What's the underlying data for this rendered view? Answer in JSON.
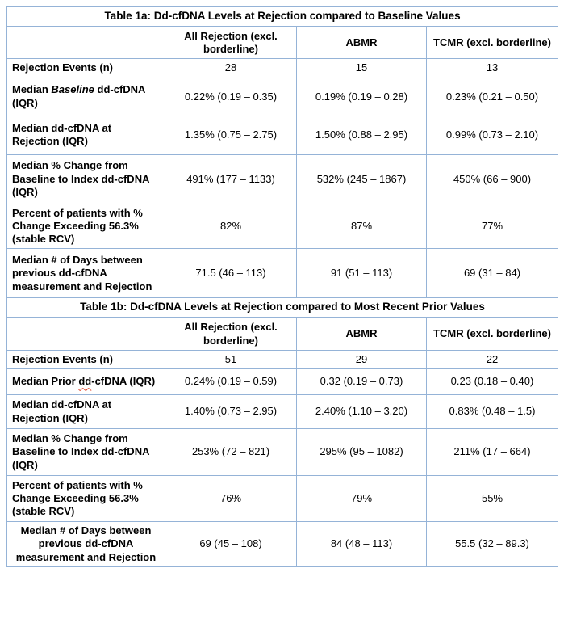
{
  "colors": {
    "table_border": "#95B3D7",
    "spellcheck_underline": "#E0351B",
    "text": "#000000"
  },
  "tables": [
    {
      "title": "Table 1a: Dd-cfDNA Levels at Rejection compared to Baseline Values",
      "columns": [
        "",
        "All Rejection (excl. borderline)",
        "ABMR",
        "TCMR (excl. borderline)"
      ],
      "rows": [
        {
          "label_parts": [
            {
              "text": "Rejection Events (n)"
            }
          ],
          "values": [
            "28",
            "15",
            "13"
          ]
        },
        {
          "label_parts": [
            {
              "text": "Median "
            },
            {
              "text": "Baseline",
              "italic": true
            },
            {
              "text": " dd-cfDNA (IQR)"
            }
          ],
          "values": [
            "0.22% (0.19 – 0.35)",
            "0.19% (0.19 – 0.28)",
            "0.23% (0.21 – 0.50)"
          ]
        },
        {
          "label_parts": [
            {
              "text": "Median dd-cfDNA at Rejection (IQR)"
            }
          ],
          "values": [
            "1.35% (0.75 – 2.75)",
            "1.50% (0.88 – 2.95)",
            "0.99% (0.73 – 2.10)"
          ]
        },
        {
          "label_parts": [
            {
              "text": "Median % Change from Baseline to Index dd-cfDNA (IQR)"
            }
          ],
          "values": [
            "491% (177 – 1133)",
            "532% (245 – 1867)",
            "450% (66 – 900)"
          ]
        },
        {
          "label_parts": [
            {
              "text": "Percent of patients with % Change Exceeding 56.3% (stable RCV)"
            }
          ],
          "values": [
            "82%",
            "87%",
            "77%"
          ]
        },
        {
          "label_parts": [
            {
              "text": "Median # of Days between previous dd-cfDNA measurement and Rejection"
            }
          ],
          "values": [
            "71.5 (46 – 113)",
            "91 (51 – 113)",
            "69 (31 – 84)"
          ]
        }
      ]
    },
    {
      "title": "Table 1b: Dd-cfDNA Levels at Rejection compared to Most Recent Prior Values",
      "columns": [
        "",
        "All Rejection (excl. borderline)",
        "ABMR",
        "TCMR (excl. borderline)"
      ],
      "rows": [
        {
          "label_parts": [
            {
              "text": "Rejection Events (n)"
            }
          ],
          "values": [
            "51",
            "29",
            "22"
          ]
        },
        {
          "label_parts": [
            {
              "text": "Median Prior "
            },
            {
              "text": "dd",
              "spellcheck": true
            },
            {
              "text": "-cfDNA (IQR)"
            }
          ],
          "values": [
            "0.24% (0.19 – 0.59)",
            "0.32 (0.19 – 0.73)",
            "0.23 (0.18 – 0.40)"
          ]
        },
        {
          "label_parts": [
            {
              "text": "Median dd-cfDNA at Rejection (IQR)"
            }
          ],
          "values": [
            "1.40% (0.73 – 2.95)",
            "2.40% (1.10 – 3.20)",
            "0.83% (0.48 – 1.5)"
          ]
        },
        {
          "label_parts": [
            {
              "text": "Median % Change from Baseline to Index dd-cfDNA (IQR)"
            }
          ],
          "values": [
            "253% (72 – 821)",
            "295% (95 – 1082)",
            "211% (17 – 664)"
          ]
        },
        {
          "label_parts": [
            {
              "text": "Percent of patients with % Change Exceeding 56.3% (stable RCV)"
            }
          ],
          "values": [
            "76%",
            "79%",
            "55%"
          ]
        },
        {
          "label_parts": [
            {
              "text": "Median # of Days between previous dd-cfDNA measurement and Rejection"
            }
          ],
          "values": [
            "69 (45 – 108)",
            "84 (48 – 113)",
            "55.5 (32 – 89.3)"
          ],
          "label_align": "center"
        }
      ]
    }
  ]
}
